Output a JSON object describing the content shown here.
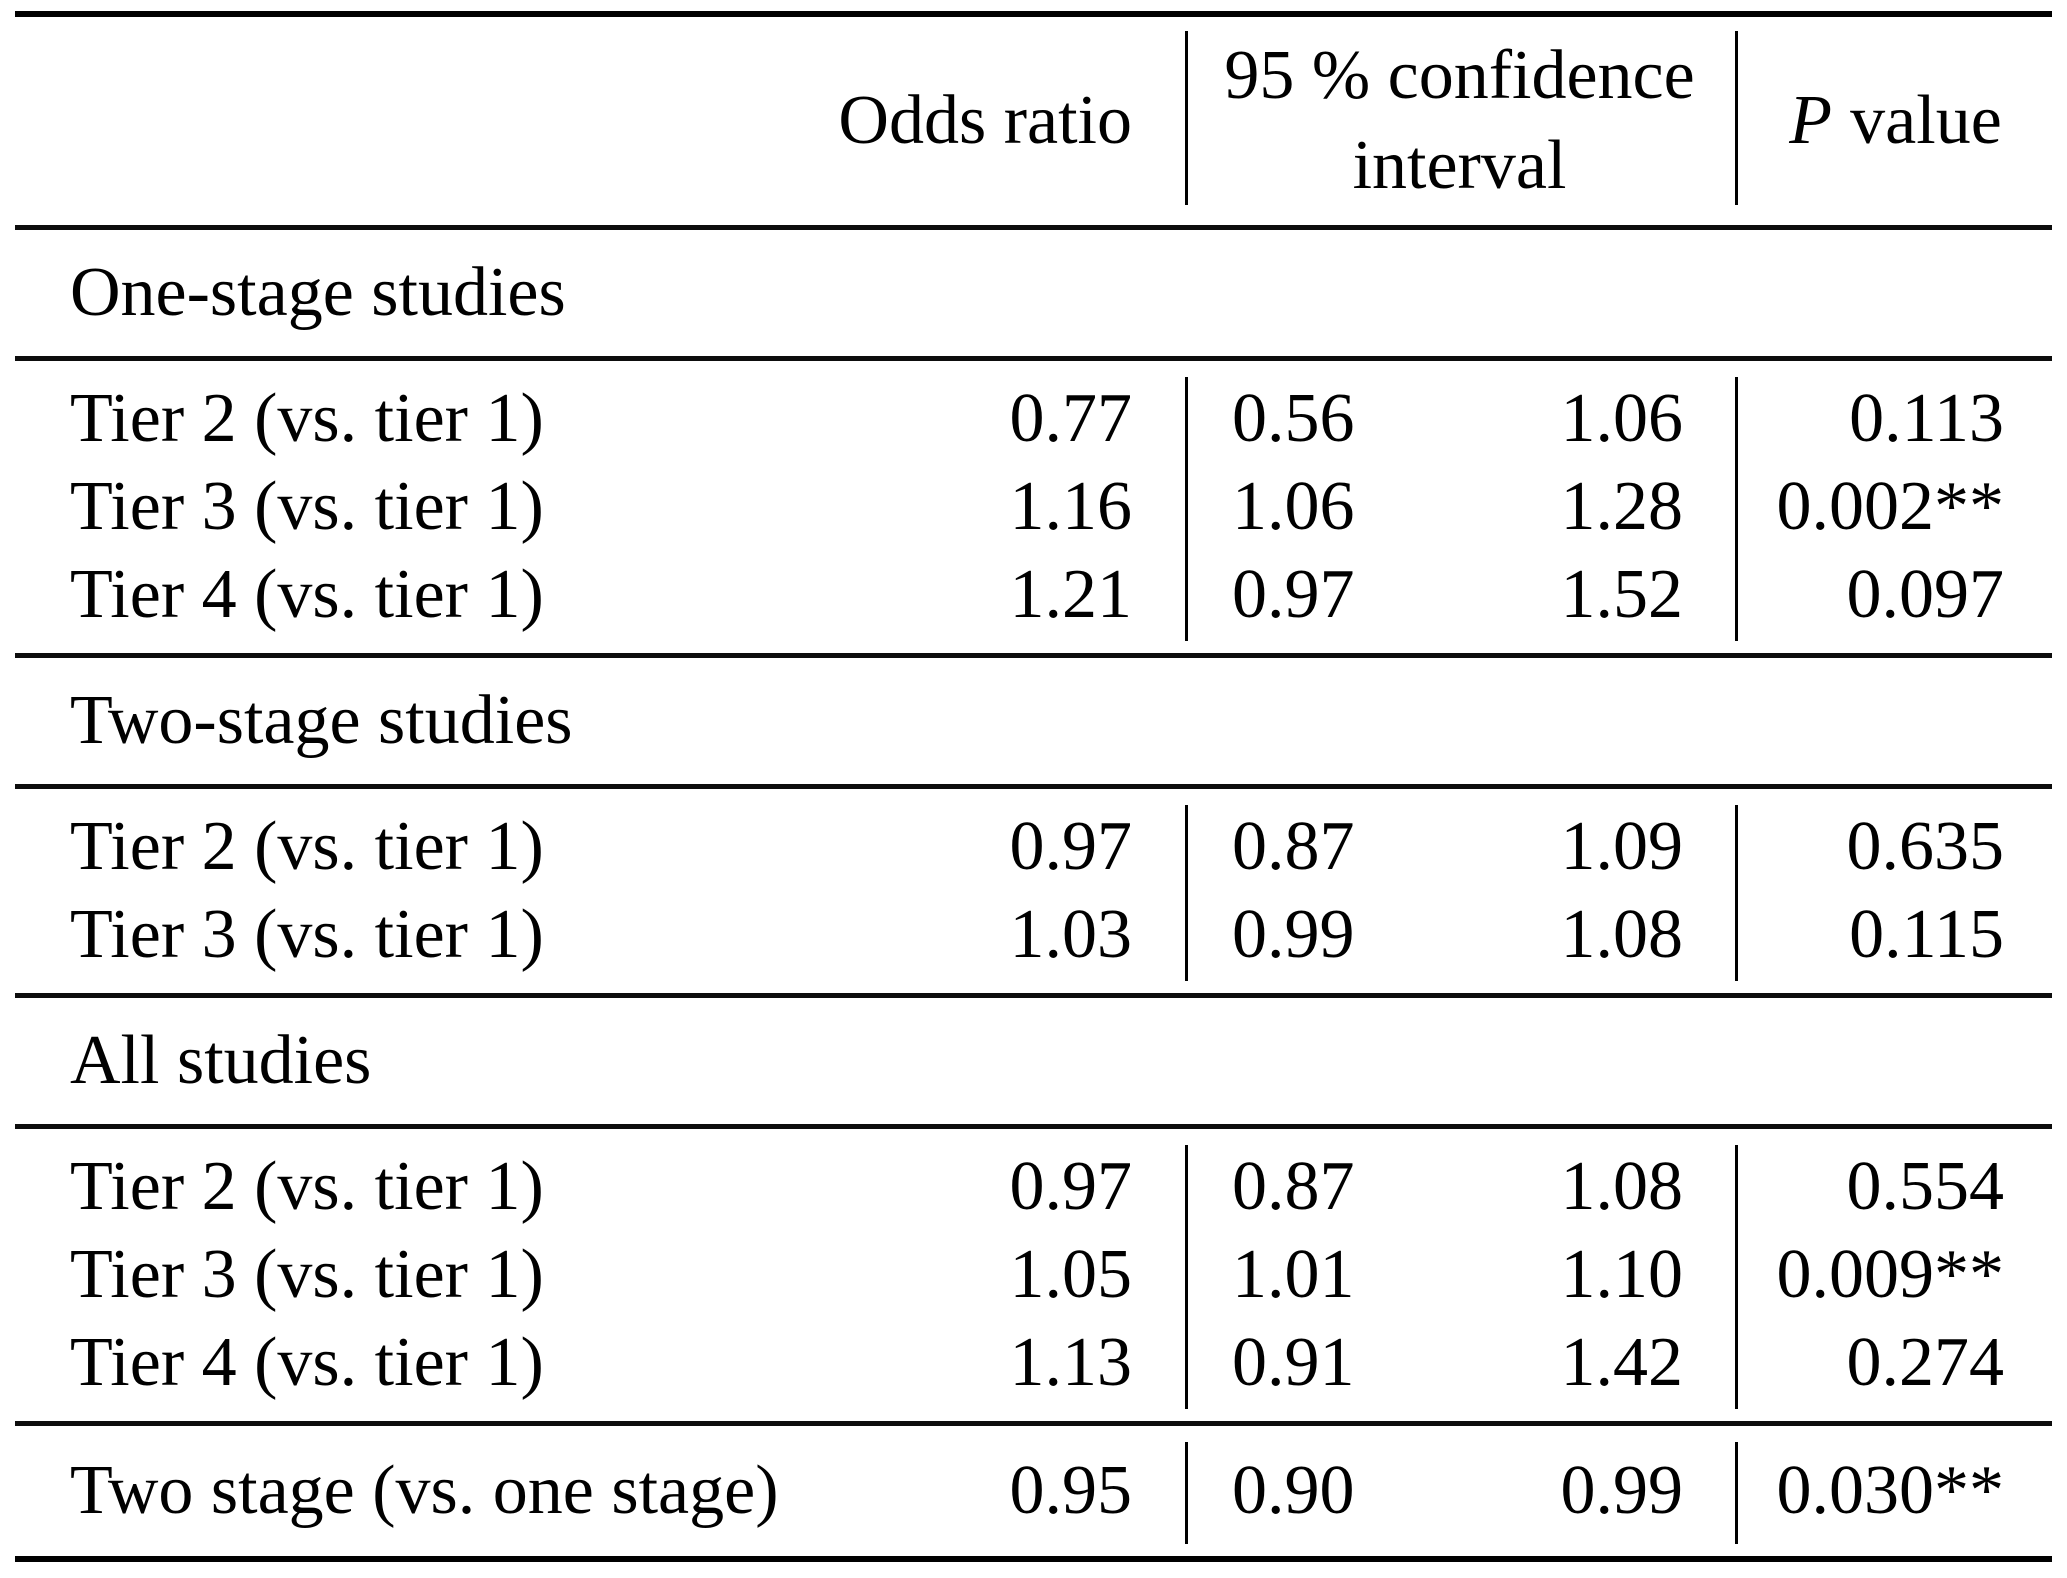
{
  "table": {
    "columns": {
      "odds_ratio": "Odds ratio",
      "ci_line1": "95 % confidence",
      "ci_line2": "interval",
      "p_head_italic": "P",
      "p_head_rest": "value"
    },
    "sections": [
      {
        "heading": "One-stage studies",
        "rows": [
          {
            "label": "Tier 2 (vs. tier 1)",
            "odds_ratio": "0.77",
            "ci_low": "0.56",
            "ci_high": "1.06",
            "p_value": "0.113"
          },
          {
            "label": "Tier 3 (vs. tier 1)",
            "odds_ratio": "1.16",
            "ci_low": "1.06",
            "ci_high": "1.28",
            "p_value": "0.002**"
          },
          {
            "label": "Tier 4 (vs. tier 1)",
            "odds_ratio": "1.21",
            "ci_low": "0.97",
            "ci_high": "1.52",
            "p_value": "0.097"
          }
        ]
      },
      {
        "heading": "Two-stage studies",
        "rows": [
          {
            "label": "Tier 2 (vs. tier 1)",
            "odds_ratio": "0.97",
            "ci_low": "0.87",
            "ci_high": "1.09",
            "p_value": "0.635"
          },
          {
            "label": "Tier 3 (vs. tier 1)",
            "odds_ratio": "1.03",
            "ci_low": "0.99",
            "ci_high": "1.08",
            "p_value": "0.115"
          }
        ]
      },
      {
        "heading": "All studies",
        "rows": [
          {
            "label": "Tier 2 (vs. tier 1)",
            "odds_ratio": "0.97",
            "ci_low": "0.87",
            "ci_high": "1.08",
            "p_value": "0.554"
          },
          {
            "label": "Tier 3 (vs. tier 1)",
            "odds_ratio": "1.05",
            "ci_low": "1.01",
            "ci_high": "1.10",
            "p_value": "0.009**"
          },
          {
            "label": "Tier 4 (vs. tier 1)",
            "odds_ratio": "1.13",
            "ci_low": "0.91",
            "ci_high": "1.42",
            "p_value": "0.274"
          }
        ]
      },
      {
        "heading": null,
        "rows": [
          {
            "label": "Two stage (vs. one stage)",
            "odds_ratio": "0.95",
            "ci_low": "0.90",
            "ci_high": "0.99",
            "p_value": "0.030**"
          }
        ]
      }
    ]
  }
}
